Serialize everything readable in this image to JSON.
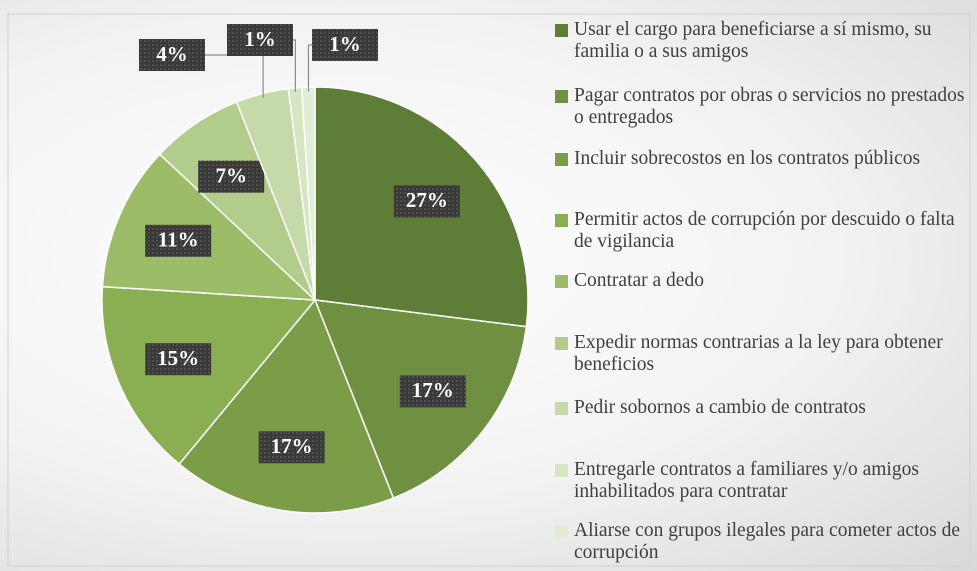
{
  "chart_data": {
    "type": "pie",
    "categories": [
      "Usar el cargo para beneficiarse a sí mismo, su familia o a sus amigos",
      "Pagar contratos por obras o servicios no prestados o entregados",
      "Incluir sobrecostos en los contratos públicos",
      "Permitir actos de corrupción por descuido o falta de vigilancia",
      "Contratar a dedo",
      "Expedir normas contrarias a la ley para obtener beneficios",
      "Pedir sobornos a cambio de contratos",
      "Entregarle contratos a familiares y/o amigos inhabilitados para contratar",
      "Aliarse con grupos ilegales para cometer actos de corrupción"
    ],
    "values": [
      27,
      17,
      17,
      15,
      11,
      7,
      4,
      1,
      1
    ],
    "value_labels": [
      "27%",
      "17%",
      "17%",
      "15%",
      "11%",
      "7%",
      "4%",
      "1%",
      "1%"
    ],
    "colors": [
      "#5e7d36",
      "#6f9040",
      "#7b9d47",
      "#8aae52",
      "#9dbc68",
      "#b2cc8b",
      "#c6daa9",
      "#d6e5c2",
      "#e3edd6"
    ]
  }
}
